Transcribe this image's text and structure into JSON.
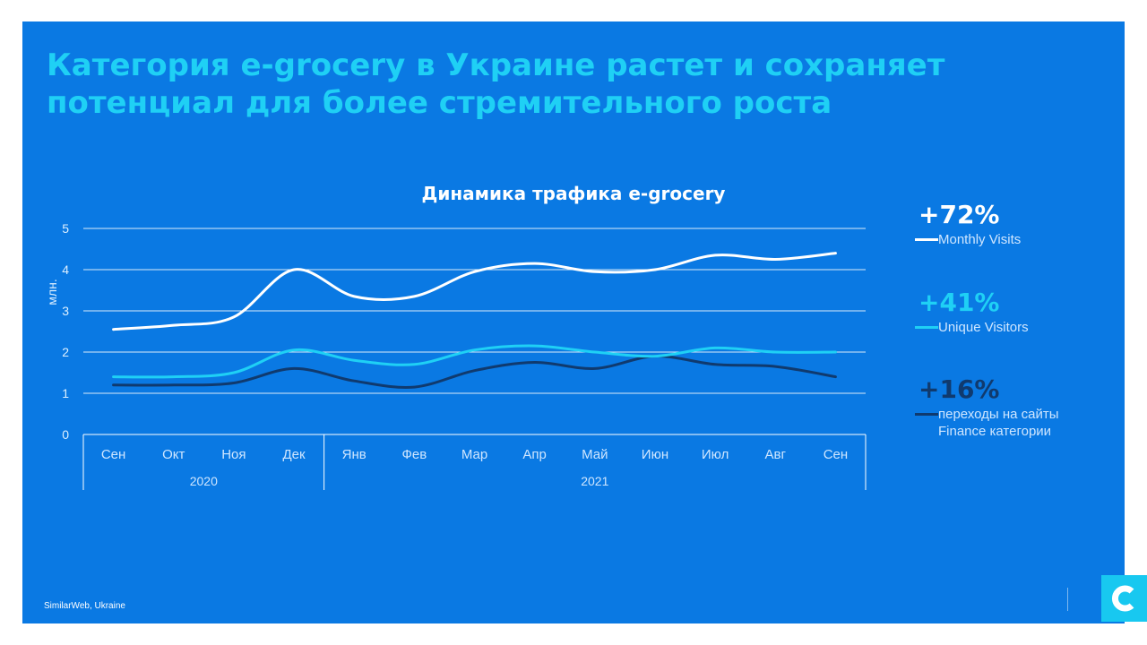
{
  "slide": {
    "headline_line1": "Категория e-grocery в Украине растет  и сохраняет",
    "headline_line2": "потенциал для более стремительного роста",
    "source": "SimilarWeb, Ukraine",
    "colors": {
      "background": "#0a79e3",
      "headline": "#1fd0f5",
      "logo": "#18c8f0"
    }
  },
  "legend": [
    {
      "pct": "+72%",
      "name": "Monthly Visits",
      "pct_color": "#ffffff",
      "line_color": "#ffffff"
    },
    {
      "pct": "+41%",
      "name": "Unique Visitors",
      "pct_color": "#1fd0f5",
      "line_color": "#1fd0f5"
    },
    {
      "pct": "+16%",
      "name": "переходы на сайты\nFinance категории",
      "pct_color": "#103a6e",
      "line_color": "#103a6e"
    }
  ],
  "chart_data": {
    "type": "line",
    "title": "Динамика трафика e-grocery",
    "ylabel": "млн.",
    "xlabel": "",
    "ylim": [
      0,
      5
    ],
    "yticks": [
      0,
      1,
      2,
      3,
      4,
      5
    ],
    "grid": true,
    "legend_placement": "right",
    "categories": [
      "Сен",
      "Окт",
      "Ноя",
      "Дек",
      "Янв",
      "Фев",
      "Мар",
      "Апр",
      "Май",
      "Июн",
      "Июл",
      "Авг",
      "Сен"
    ],
    "year_groups": [
      {
        "label": "2020",
        "count": 4
      },
      {
        "label": "2021",
        "count": 9
      }
    ],
    "series": [
      {
        "name": "Monthly Visits",
        "color": "#ffffff",
        "values": [
          2.55,
          2.65,
          2.85,
          4.0,
          3.35,
          3.35,
          3.95,
          4.15,
          3.95,
          4.0,
          4.35,
          4.25,
          4.4
        ]
      },
      {
        "name": "Unique Visitors",
        "color": "#1fd0f5",
        "values": [
          1.4,
          1.4,
          1.5,
          2.05,
          1.8,
          1.7,
          2.05,
          2.15,
          2.0,
          1.9,
          2.1,
          2.0,
          2.0
        ]
      },
      {
        "name": "переходы на сайты Finance категории",
        "color": "#103a6e",
        "values": [
          1.2,
          1.2,
          1.25,
          1.6,
          1.3,
          1.15,
          1.55,
          1.75,
          1.6,
          1.9,
          1.7,
          1.65,
          1.4
        ]
      }
    ]
  }
}
